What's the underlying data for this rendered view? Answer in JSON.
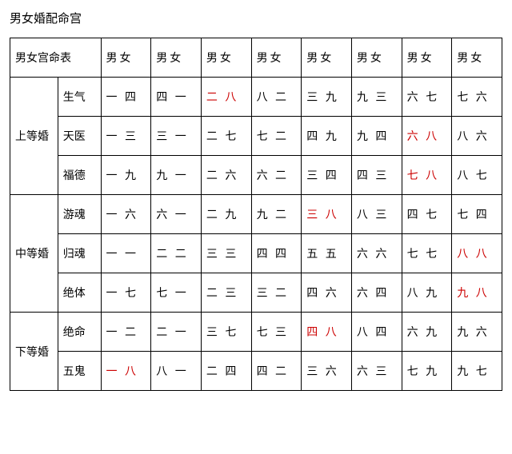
{
  "title": "男女婚配命宫",
  "header": {
    "merged_label": "男女宫命表",
    "col_label": "男女"
  },
  "groups": [
    {
      "name": "上等婚",
      "rows": [
        {
          "type": "生气",
          "cells": [
            {
              "t": "一 四"
            },
            {
              "t": "四 一"
            },
            {
              "t": "二 八",
              "red": true
            },
            {
              "t": "八 二"
            },
            {
              "t": "三 九"
            },
            {
              "t": "九 三"
            },
            {
              "t": "六 七"
            },
            {
              "t": "七 六"
            }
          ]
        },
        {
          "type": "天医",
          "cells": [
            {
              "t": "一 三"
            },
            {
              "t": "三 一"
            },
            {
              "t": "二 七"
            },
            {
              "t": "七 二"
            },
            {
              "t": "四 九"
            },
            {
              "t": "九 四"
            },
            {
              "t": "六 八",
              "red": true
            },
            {
              "t": "八 六"
            }
          ]
        },
        {
          "type": "福德",
          "cells": [
            {
              "t": "一 九"
            },
            {
              "t": "九 一"
            },
            {
              "t": "二 六"
            },
            {
              "t": "六 二"
            },
            {
              "t": "三 四"
            },
            {
              "t": "四 三"
            },
            {
              "t": "七 八",
              "red": true
            },
            {
              "t": "八 七"
            }
          ]
        }
      ]
    },
    {
      "name": "中等婚",
      "rows": [
        {
          "type": "游魂",
          "cells": [
            {
              "t": "一 六"
            },
            {
              "t": "六 一"
            },
            {
              "t": "二 九"
            },
            {
              "t": "九 二"
            },
            {
              "t": "三 八",
              "red": true
            },
            {
              "t": "八 三"
            },
            {
              "t": "四 七"
            },
            {
              "t": "七 四"
            }
          ]
        },
        {
          "type": "归魂",
          "cells": [
            {
              "t": "一 一"
            },
            {
              "t": "二 二"
            },
            {
              "t": "三 三"
            },
            {
              "t": "四 四"
            },
            {
              "t": "五 五"
            },
            {
              "t": "六 六"
            },
            {
              "t": "七 七"
            },
            {
              "t": "八 八",
              "red": true
            }
          ]
        },
        {
          "type": "绝体",
          "cells": [
            {
              "t": "一 七"
            },
            {
              "t": "七 一"
            },
            {
              "t": "二 三"
            },
            {
              "t": "三 二"
            },
            {
              "t": "四 六"
            },
            {
              "t": "六 四"
            },
            {
              "t": "八 九"
            },
            {
              "t": "九 八",
              "red": true
            }
          ]
        }
      ]
    },
    {
      "name": "下等婚",
      "rows": [
        {
          "type": "绝命",
          "cells": [
            {
              "t": "一 二"
            },
            {
              "t": "二 一"
            },
            {
              "t": "三 七"
            },
            {
              "t": "七 三"
            },
            {
              "t": "四 八",
              "red": true
            },
            {
              "t": "八 四"
            },
            {
              "t": "六 九"
            },
            {
              "t": "九 六"
            }
          ]
        },
        {
          "type": "五鬼",
          "cells": [
            {
              "t": "一 八",
              "red": true
            },
            {
              "t": "八 一"
            },
            {
              "t": "二 四"
            },
            {
              "t": "四 二"
            },
            {
              "t": "三 六"
            },
            {
              "t": "六 三"
            },
            {
              "t": "七 九"
            },
            {
              "t": "九 七"
            }
          ]
        }
      ]
    }
  ]
}
